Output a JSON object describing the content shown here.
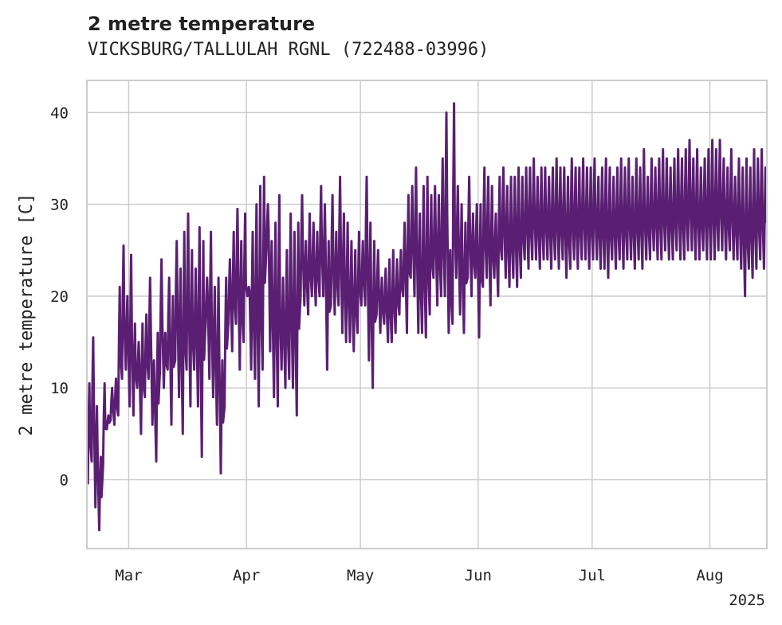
{
  "chart_data": {
    "type": "line",
    "title": "2 metre temperature",
    "subtitle": "VICKSBURG/TALLULAH RGNL (722488-03996)",
    "xlabel": "",
    "ylabel": "2 metre temperature [C]",
    "x_range": [
      "2025-02-18",
      "2025-08-16"
    ],
    "ylim": [
      -7.5,
      43.5
    ],
    "yticks": [
      0,
      10,
      20,
      30,
      40
    ],
    "xticks": [
      {
        "date": "2025-03-01",
        "label": "Mar"
      },
      {
        "date": "2025-04-01",
        "label": "Apr"
      },
      {
        "date": "2025-05-01",
        "label": "May"
      },
      {
        "date": "2025-06-01",
        "label": "Jun"
      },
      {
        "date": "2025-07-01",
        "label": "Jul"
      },
      {
        "date": "2025-08-01",
        "label": "Aug"
      }
    ],
    "year_label": "2025",
    "grid": true,
    "color": "#5a1f72",
    "series": [
      {
        "name": "",
        "x": [
          "2025-02-18",
          "2025-02-19",
          "2025-02-20",
          "2025-02-21",
          "2025-02-22",
          "2025-02-23",
          "2025-02-24",
          "2025-02-25",
          "2025-02-26",
          "2025-02-27",
          "2025-02-28",
          "2025-03-01",
          "2025-03-02",
          "2025-03-03",
          "2025-03-04",
          "2025-03-05",
          "2025-03-06",
          "2025-03-07",
          "2025-03-08",
          "2025-03-09",
          "2025-03-10",
          "2025-03-11",
          "2025-03-12",
          "2025-03-13",
          "2025-03-14",
          "2025-03-15",
          "2025-03-16",
          "2025-03-17",
          "2025-03-18",
          "2025-03-19",
          "2025-03-20",
          "2025-03-21",
          "2025-03-22",
          "2025-03-23",
          "2025-03-24",
          "2025-03-25",
          "2025-03-26",
          "2025-03-27",
          "2025-03-28",
          "2025-03-29",
          "2025-03-30",
          "2025-03-31",
          "2025-04-01",
          "2025-04-02",
          "2025-04-03",
          "2025-04-04",
          "2025-04-05",
          "2025-04-06",
          "2025-04-07",
          "2025-04-08",
          "2025-04-09",
          "2025-04-10",
          "2025-04-11",
          "2025-04-12",
          "2025-04-13",
          "2025-04-14",
          "2025-04-15",
          "2025-04-16",
          "2025-04-17",
          "2025-04-18",
          "2025-04-19",
          "2025-04-20",
          "2025-04-21",
          "2025-04-22",
          "2025-04-23",
          "2025-04-24",
          "2025-04-25",
          "2025-04-26",
          "2025-04-27",
          "2025-04-28",
          "2025-04-29",
          "2025-04-30",
          "2025-05-01",
          "2025-05-02",
          "2025-05-03",
          "2025-05-04",
          "2025-05-05",
          "2025-05-06",
          "2025-05-07",
          "2025-05-08",
          "2025-05-09",
          "2025-05-10",
          "2025-05-11",
          "2025-05-12",
          "2025-05-13",
          "2025-05-14",
          "2025-05-15",
          "2025-05-16",
          "2025-05-17",
          "2025-05-18",
          "2025-05-19",
          "2025-05-20",
          "2025-05-21",
          "2025-05-22",
          "2025-05-23",
          "2025-05-24",
          "2025-05-25",
          "2025-05-26",
          "2025-05-27",
          "2025-05-28",
          "2025-05-29",
          "2025-05-30",
          "2025-05-31",
          "2025-06-01",
          "2025-06-02",
          "2025-06-03",
          "2025-06-04",
          "2025-06-05",
          "2025-06-06",
          "2025-06-07",
          "2025-06-08",
          "2025-06-09",
          "2025-06-10",
          "2025-06-11",
          "2025-06-12",
          "2025-06-13",
          "2025-06-14",
          "2025-06-15",
          "2025-06-16",
          "2025-06-17",
          "2025-06-18",
          "2025-06-19",
          "2025-06-20",
          "2025-06-21",
          "2025-06-22",
          "2025-06-23",
          "2025-06-24",
          "2025-06-25",
          "2025-06-26",
          "2025-06-27",
          "2025-06-28",
          "2025-06-29",
          "2025-06-30",
          "2025-07-01",
          "2025-07-02",
          "2025-07-03",
          "2025-07-04",
          "2025-07-05",
          "2025-07-06",
          "2025-07-07",
          "2025-07-08",
          "2025-07-09",
          "2025-07-10",
          "2025-07-11",
          "2025-07-12",
          "2025-07-13",
          "2025-07-14",
          "2025-07-15",
          "2025-07-16",
          "2025-07-17",
          "2025-07-18",
          "2025-07-19",
          "2025-07-20",
          "2025-07-21",
          "2025-07-22",
          "2025-07-23",
          "2025-07-24",
          "2025-07-25",
          "2025-07-26",
          "2025-07-27",
          "2025-07-28",
          "2025-07-29",
          "2025-07-30",
          "2025-07-31",
          "2025-08-01",
          "2025-08-02",
          "2025-08-03",
          "2025-08-04",
          "2025-08-05",
          "2025-08-06",
          "2025-08-07",
          "2025-08-08",
          "2025-08-09",
          "2025-08-10",
          "2025-08-11",
          "2025-08-12",
          "2025-08-13",
          "2025-08-14",
          "2025-08-15"
        ],
        "y_min": [
          -0.5,
          2,
          -3,
          -5.5,
          1.5,
          5.5,
          6.5,
          6,
          7,
          11,
          12,
          8,
          7,
          10,
          5,
          9,
          11,
          6,
          2,
          12,
          10,
          12,
          6,
          13,
          9,
          5,
          12,
          8,
          12,
          8,
          2.5,
          17,
          11,
          9,
          6,
          0.7,
          8,
          17,
          14,
          17,
          12,
          15,
          20,
          12,
          11,
          8,
          12,
          25,
          14,
          9,
          8,
          12,
          10,
          11,
          10,
          7,
          20,
          19,
          18,
          20,
          19,
          20,
          20,
          12,
          19,
          18,
          19,
          16,
          15,
          15,
          14,
          16,
          19,
          19,
          13,
          10,
          18,
          16,
          17,
          15,
          15,
          16,
          18,
          20,
          16,
          22,
          20,
          16,
          16,
          15.5,
          18,
          22,
          19,
          20,
          20,
          16,
          17,
          22,
          18,
          16,
          22,
          20,
          22,
          15.5,
          21,
          22,
          19,
          22,
          20,
          24,
          22,
          21,
          22,
          21,
          22,
          24,
          23,
          24,
          24,
          23,
          24,
          24,
          23,
          24,
          23,
          24,
          22,
          23,
          24,
          23,
          24,
          24,
          23,
          24,
          24,
          23,
          23,
          22,
          24,
          23,
          24,
          23,
          24,
          24,
          23,
          24,
          23,
          24,
          24,
          25,
          24,
          24,
          25,
          24,
          24,
          25,
          24,
          24,
          25,
          25,
          24,
          24,
          25,
          24,
          24,
          24,
          25,
          25,
          24,
          25,
          24,
          24,
          23,
          20,
          23,
          22,
          23,
          24,
          23,
          22,
          23,
          24,
          24,
          23,
          23
        ],
        "y_max": [
          10.5,
          15.5,
          8,
          2.5,
          10.5,
          7,
          10,
          11,
          21,
          25.5,
          20,
          24.5,
          17,
          15,
          17,
          18,
          22,
          13,
          16,
          24,
          16,
          22,
          20,
          26,
          23,
          27,
          29,
          25,
          23,
          27.5,
          26,
          22,
          27,
          21,
          22,
          13,
          22,
          24,
          27,
          29.5,
          26,
          29,
          21,
          27,
          30,
          32,
          33,
          30,
          26,
          28,
          31,
          22,
          25,
          29,
          27,
          28,
          31,
          26,
          29,
          28,
          27,
          32,
          30,
          26,
          31,
          27,
          33,
          29,
          28,
          26,
          25,
          27,
          26,
          33,
          28,
          26,
          25,
          22,
          23,
          24,
          25,
          24,
          25,
          28,
          31,
          32,
          34,
          29,
          32,
          33,
          31,
          32,
          31,
          35,
          40,
          25,
          41,
          32,
          30,
          28,
          33,
          29,
          30,
          30,
          34,
          33,
          32,
          29,
          33,
          34,
          32,
          33,
          33,
          34,
          33,
          34,
          34,
          35,
          33,
          34,
          34,
          33,
          34,
          35,
          34,
          34,
          33,
          35,
          34,
          34,
          35,
          34,
          34,
          35,
          33,
          34,
          35,
          34,
          33,
          34,
          35,
          34,
          35,
          33,
          35,
          34,
          36,
          33,
          35,
          34,
          35,
          36,
          35,
          34,
          35,
          36,
          35,
          36,
          37,
          35,
          36,
          34,
          35,
          36,
          37,
          36,
          37,
          35,
          34,
          36,
          33,
          35,
          34,
          35,
          34,
          36,
          35,
          36,
          34,
          37,
          35,
          33,
          34
        ]
      }
    ]
  }
}
